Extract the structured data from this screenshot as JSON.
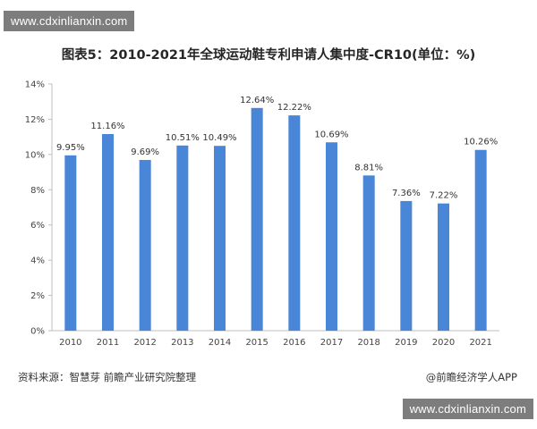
{
  "watermark_top": "www.cdxinlianxin.com",
  "watermark_bottom": "www.cdxinlianxin.com",
  "footer": {
    "source": "资料来源：智慧芽 前瞻产业研究院整理",
    "brand": "@前瞻经济学人APP"
  },
  "colors": {
    "bar": "#4a86d8",
    "axis": "#bfbfbf",
    "background": "#ffffff"
  },
  "chart_data": {
    "type": "bar",
    "title": "图表5：2010-2021年全球运动鞋专利申请人集中度-CR10(单位：%)",
    "xlabel": "",
    "ylabel": "",
    "categories": [
      "2010",
      "2011",
      "2012",
      "2013",
      "2014",
      "2015",
      "2016",
      "2017",
      "2018",
      "2019",
      "2020",
      "2021"
    ],
    "values": [
      9.95,
      11.16,
      9.69,
      10.51,
      10.49,
      12.64,
      12.22,
      10.69,
      8.81,
      7.36,
      7.22,
      10.26
    ],
    "value_labels": [
      "9.95%",
      "11.16%",
      "9.69%",
      "10.51%",
      "10.49%",
      "12.64%",
      "12.22%",
      "10.69%",
      "8.81%",
      "7.36%",
      "7.22%",
      "10.26%"
    ],
    "ylim": [
      0,
      14
    ],
    "yticks": [
      0,
      2,
      4,
      6,
      8,
      10,
      12,
      14
    ],
    "ytick_labels": [
      "0%",
      "2%",
      "4%",
      "6%",
      "8%",
      "10%",
      "12%",
      "14%"
    ],
    "grid": false,
    "legend": "none"
  }
}
